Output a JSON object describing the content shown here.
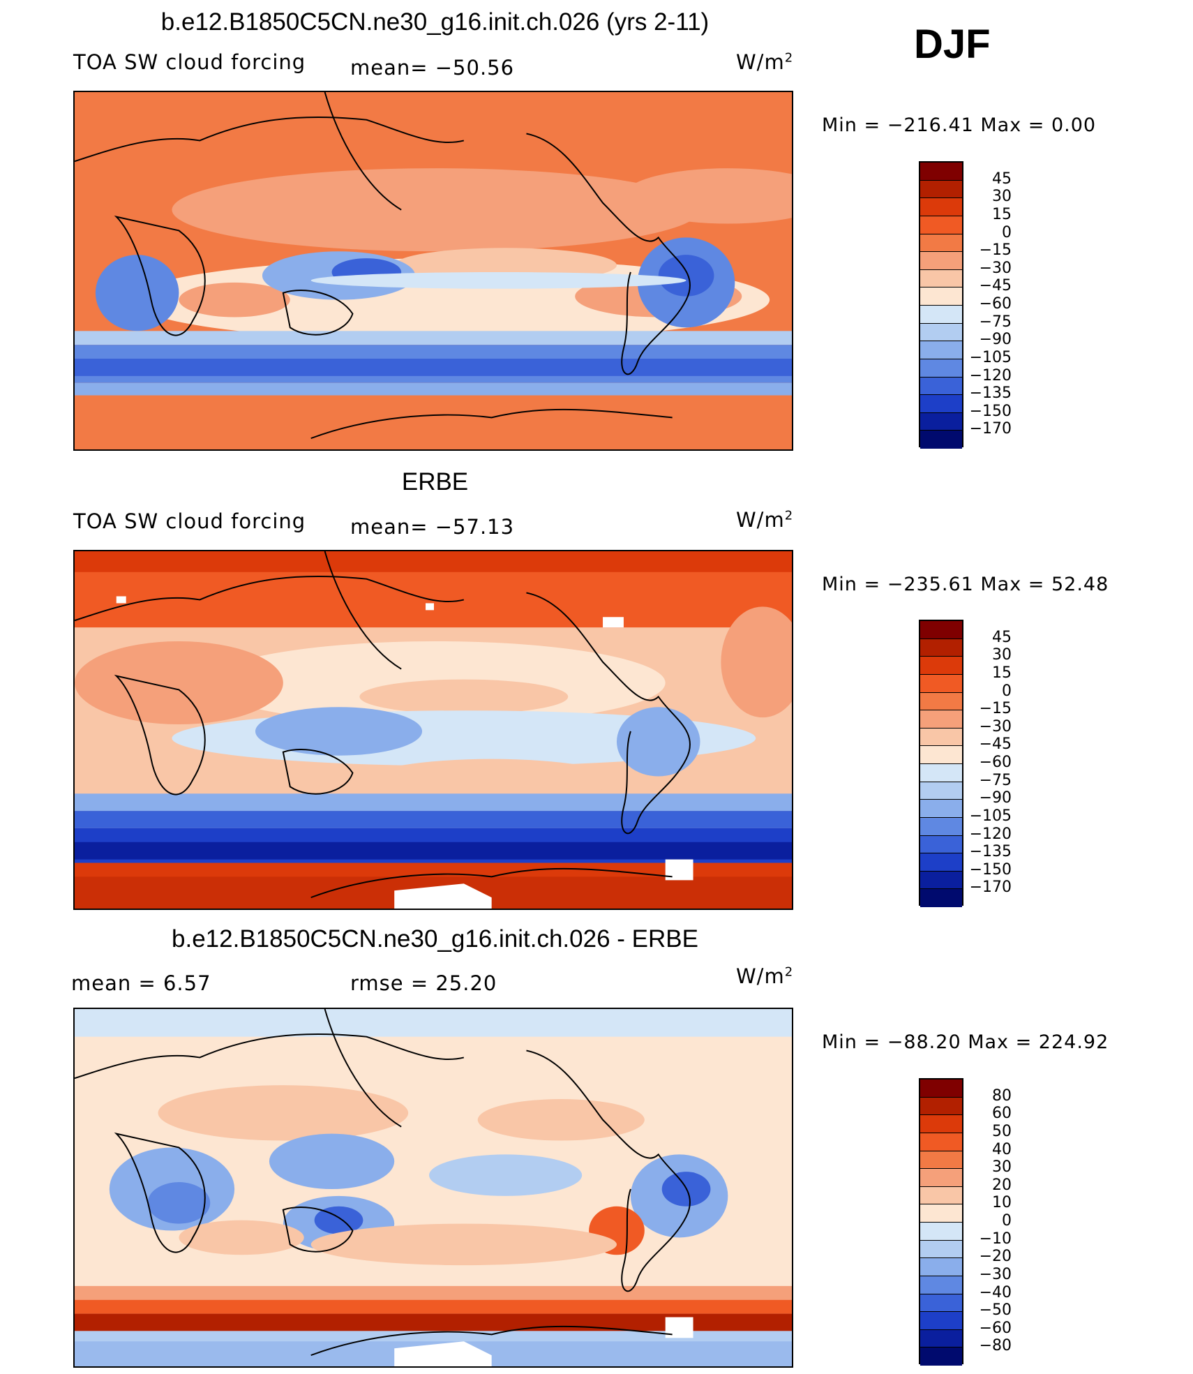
{
  "season": "DJF",
  "units_base": "W/m",
  "units_exp": "2",
  "panel_top": {
    "title": "b.e12.B1850C5CN.ne30_g16.init.ch.026 (yrs 2-11)",
    "variable": "TOA SW cloud forcing",
    "mean_label": "mean= −50.56",
    "minmax": "Min = −216.41 Max =    0.00"
  },
  "panel_mid": {
    "title": "ERBE",
    "variable": "TOA SW cloud forcing",
    "mean_label": "mean= −57.13",
    "minmax": "Min = −235.61 Max =   52.48"
  },
  "panel_bot": {
    "title": "b.e12.B1850C5CN.ne30_g16.init.ch.026 - ERBE",
    "mean_label": "mean =    6.57",
    "rmse_label": "rmse =   25.20",
    "minmax": "Min = −88.20 Max = 224.92"
  },
  "chart_data": [
    {
      "type": "heatmap",
      "title": "b.e12.B1850C5CN.ne30_g16.init.ch.026 (yrs 2-11)",
      "variable": "TOA SW cloud forcing",
      "units": "W/m^2",
      "mean": -50.56,
      "min": -216.41,
      "max": 0.0,
      "colorbar_levels": [
        45,
        30,
        15,
        0,
        -15,
        -30,
        -45,
        -60,
        -75,
        -90,
        -105,
        -120,
        -135,
        -150,
        -170
      ]
    },
    {
      "type": "heatmap",
      "title": "ERBE",
      "variable": "TOA SW cloud forcing",
      "units": "W/m^2",
      "mean": -57.13,
      "min": -235.61,
      "max": 52.48,
      "colorbar_levels": [
        45,
        30,
        15,
        0,
        -15,
        -30,
        -45,
        -60,
        -75,
        -90,
        -105,
        -120,
        -135,
        -150,
        -170
      ]
    },
    {
      "type": "heatmap",
      "title": "b.e12.B1850C5CN.ne30_g16.init.ch.026 - ERBE",
      "units": "W/m^2",
      "mean": 6.57,
      "rmse": 25.2,
      "min": -88.2,
      "max": 224.92,
      "colorbar_levels": [
        80,
        60,
        50,
        40,
        30,
        20,
        10,
        0,
        -10,
        -20,
        -30,
        -40,
        -50,
        -60,
        -80
      ]
    }
  ],
  "colorbar1": {
    "labels": [
      "45",
      "30",
      "15",
      "0",
      "−15",
      "−30",
      "−45",
      "−60",
      "−75",
      "−90",
      "−105",
      "−120",
      "−135",
      "−150",
      "−170"
    ],
    "colors": [
      "#7f0000",
      "#b22000",
      "#dc3a0a",
      "#f05a24",
      "#f27a45",
      "#f5a07a",
      "#f9c6a7",
      "#fde6d2",
      "#d4e6f7",
      "#b2cdf1",
      "#8aaeeb",
      "#5f88e2",
      "#3a62d8",
      "#1d3fc8",
      "#0a1f9e",
      "#000a6e"
    ]
  },
  "colorbar3": {
    "labels": [
      "80",
      "60",
      "50",
      "40",
      "30",
      "20",
      "10",
      "0",
      "−10",
      "−20",
      "−30",
      "−40",
      "−50",
      "−60",
      "−80"
    ],
    "colors": [
      "#7f0000",
      "#b22000",
      "#dc3a0a",
      "#f05a24",
      "#f27a45",
      "#f5a07a",
      "#f9c6a7",
      "#fde6d2",
      "#d4e6f7",
      "#b2cdf1",
      "#8aaeeb",
      "#5f88e2",
      "#3a62d8",
      "#1d3fc8",
      "#0a1f9e",
      "#000a6e"
    ]
  }
}
